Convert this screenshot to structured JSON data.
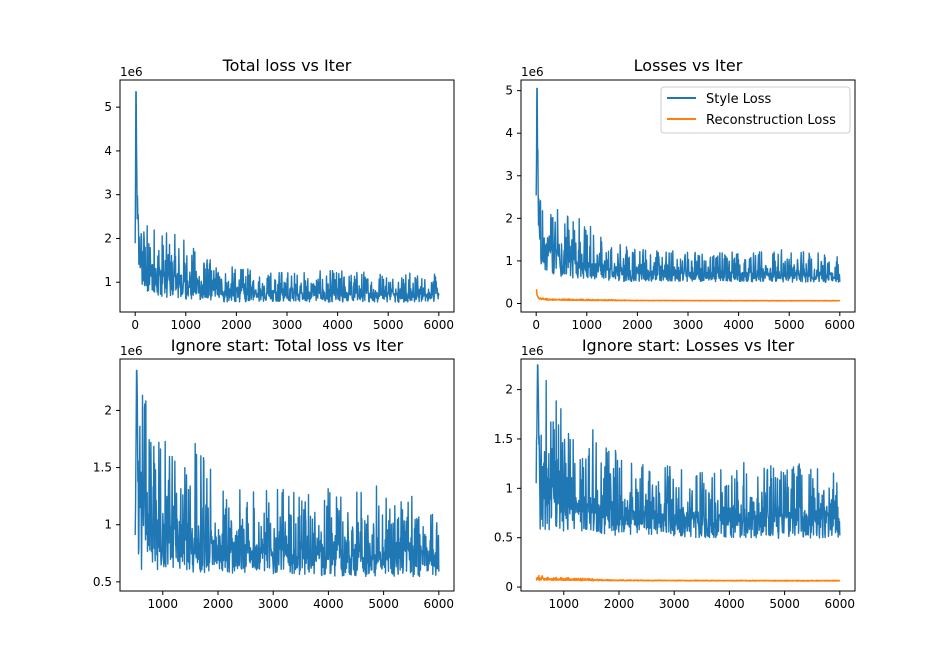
{
  "chart_data": [
    {
      "type": "line",
      "title": "Total loss vs Iter",
      "xlabel": "",
      "ylabel": "",
      "y_offset_label": "1e6",
      "xlim": [
        -300,
        6300
      ],
      "ylim": [
        0.32,
        5.62
      ],
      "xticks": [
        0,
        1000,
        2000,
        3000,
        4000,
        5000,
        6000
      ],
      "yticks": [
        1,
        2,
        3,
        4,
        5
      ],
      "grid": false,
      "legend": "none",
      "series": [
        {
          "color": "#1f77b4",
          "x": [
            0,
            15,
            40,
            80,
            150,
            250,
            400,
            600,
            800,
            1000,
            1200,
            1400,
            1600,
            2000,
            2500,
            3000,
            3500,
            4000,
            4500,
            5000,
            5500,
            6000
          ],
          "y": [
            1.8,
            5.35,
            2.6,
            1.7,
            1.5,
            1.3,
            1.2,
            1.15,
            1.1,
            1.0,
            0.95,
            0.9,
            0.85,
            0.8,
            0.78,
            0.76,
            0.75,
            0.75,
            0.75,
            0.74,
            0.74,
            0.73
          ],
          "noise_low": [
            0.2,
            0.0,
            0.6,
            0.7,
            0.6,
            0.55,
            0.5,
            0.5,
            0.45,
            0.4,
            0.35,
            0.3,
            0.3,
            0.25,
            0.22,
            0.2,
            0.2,
            0.2,
            0.2,
            0.2,
            0.2,
            0.2
          ],
          "noise_high": [
            1.2,
            0.0,
            0.9,
            1.0,
            1.0,
            1.1,
            1.3,
            1.0,
            1.0,
            1.1,
            0.8,
            0.7,
            0.6,
            0.55,
            0.5,
            0.55,
            0.5,
            0.55,
            0.55,
            0.6,
            0.5,
            0.45
          ]
        }
      ]
    },
    {
      "type": "line",
      "title": "Losses vs Iter",
      "xlabel": "",
      "ylabel": "",
      "y_offset_label": "1e6",
      "xlim": [
        -300,
        6300
      ],
      "ylim": [
        -0.2,
        5.25
      ],
      "xticks": [
        0,
        1000,
        2000,
        3000,
        4000,
        5000,
        6000
      ],
      "yticks": [
        0,
        1,
        2,
        3,
        4,
        5
      ],
      "grid": false,
      "legend": "top-right",
      "series": [
        {
          "name": "Style Loss",
          "color": "#1f77b4",
          "x": [
            0,
            15,
            40,
            80,
            150,
            250,
            400,
            600,
            800,
            1000,
            1200,
            1400,
            1600,
            2000,
            2500,
            3000,
            3500,
            4000,
            4500,
            5000,
            5500,
            6000
          ],
          "y": [
            1.6,
            5.05,
            2.5,
            1.6,
            1.4,
            1.25,
            1.15,
            1.1,
            1.05,
            0.95,
            0.9,
            0.85,
            0.8,
            0.76,
            0.74,
            0.72,
            0.71,
            0.71,
            0.71,
            0.7,
            0.7,
            0.69
          ],
          "noise_low": [
            0.2,
            0.0,
            0.6,
            0.7,
            0.6,
            0.55,
            0.5,
            0.5,
            0.45,
            0.4,
            0.35,
            0.3,
            0.3,
            0.25,
            0.22,
            0.2,
            0.2,
            0.2,
            0.2,
            0.2,
            0.2,
            0.2
          ],
          "noise_high": [
            1.2,
            0.0,
            0.9,
            1.0,
            1.0,
            1.1,
            1.2,
            1.0,
            1.0,
            1.0,
            0.8,
            0.7,
            0.6,
            0.55,
            0.5,
            0.55,
            0.5,
            0.55,
            0.55,
            0.6,
            0.5,
            0.45
          ]
        },
        {
          "name": "Reconstruction Loss",
          "color": "#ff7f0e",
          "x": [
            0,
            20,
            60,
            150,
            300,
            600,
            1000,
            1500,
            2000,
            3000,
            4000,
            5000,
            6000
          ],
          "y": [
            0.32,
            0.2,
            0.12,
            0.1,
            0.09,
            0.085,
            0.08,
            0.075,
            0.07,
            0.068,
            0.066,
            0.065,
            0.065
          ],
          "noise_low": [
            0.02,
            0.02,
            0.02,
            0.015,
            0.012,
            0.01,
            0.01,
            0.008,
            0.004,
            0.003,
            0.003,
            0.003,
            0.003
          ],
          "noise_high": [
            0.04,
            0.04,
            0.03,
            0.025,
            0.02,
            0.02,
            0.02,
            0.015,
            0.006,
            0.004,
            0.004,
            0.004,
            0.004
          ]
        }
      ]
    },
    {
      "type": "line",
      "title": "Ignore start: Total loss vs Iter",
      "xlabel": "",
      "ylabel": "",
      "y_offset_label": "1e6",
      "xlim": [
        225,
        6275
      ],
      "ylim": [
        0.42,
        2.45
      ],
      "xticks": [
        1000,
        2000,
        3000,
        4000,
        5000,
        6000
      ],
      "yticks": [
        0.5,
        1.0,
        1.5,
        2.0
      ],
      "grid": false,
      "legend": "none",
      "series": [
        {
          "color": "#1f77b4",
          "x": [
            500,
            530,
            560,
            600,
            700,
            800,
            1000,
            1200,
            1400,
            1600,
            2000,
            2500,
            3000,
            3500,
            4000,
            4500,
            5000,
            5500,
            6000
          ],
          "y": [
            1.1,
            2.35,
            1.3,
            1.15,
            1.1,
            1.05,
            1.0,
            0.95,
            0.9,
            0.87,
            0.82,
            0.8,
            0.78,
            0.77,
            0.77,
            0.77,
            0.76,
            0.76,
            0.75
          ],
          "noise_low": [
            0.4,
            0.0,
            0.6,
            0.55,
            0.5,
            0.45,
            0.4,
            0.35,
            0.3,
            0.3,
            0.25,
            0.22,
            0.22,
            0.22,
            0.22,
            0.22,
            0.22,
            0.22,
            0.2
          ],
          "noise_high": [
            0.4,
            0.0,
            0.9,
            1.0,
            1.05,
            1.1,
            0.8,
            0.7,
            0.6,
            0.9,
            0.55,
            0.5,
            0.55,
            0.5,
            0.55,
            0.55,
            0.6,
            0.5,
            0.45
          ]
        }
      ]
    },
    {
      "type": "line",
      "title": "Ignore start: Losses vs Iter",
      "xlabel": "",
      "ylabel": "",
      "y_offset_label": "1e6",
      "xlim": [
        225,
        6275
      ],
      "ylim": [
        -0.04,
        2.31
      ],
      "xticks": [
        1000,
        2000,
        3000,
        4000,
        5000,
        6000
      ],
      "yticks": [
        0.0,
        0.5,
        1.0,
        1.5,
        2.0
      ],
      "grid": false,
      "legend": "none",
      "series": [
        {
          "name": "Style Loss",
          "color": "#1f77b4",
          "x": [
            500,
            530,
            560,
            600,
            700,
            800,
            1000,
            1200,
            1400,
            1600,
            2000,
            2500,
            3000,
            3500,
            4000,
            4500,
            5000,
            5500,
            6000
          ],
          "y": [
            1.05,
            2.25,
            1.2,
            1.1,
            1.05,
            1.0,
            0.95,
            0.9,
            0.85,
            0.82,
            0.77,
            0.75,
            0.73,
            0.72,
            0.72,
            0.72,
            0.71,
            0.71,
            0.7
          ],
          "noise_low": [
            0.4,
            0.0,
            0.6,
            0.55,
            0.5,
            0.45,
            0.4,
            0.35,
            0.3,
            0.3,
            0.25,
            0.22,
            0.22,
            0.22,
            0.22,
            0.22,
            0.22,
            0.22,
            0.2
          ],
          "noise_high": [
            0.4,
            0.0,
            0.9,
            1.0,
            1.05,
            1.1,
            0.8,
            0.7,
            0.6,
            0.9,
            0.55,
            0.5,
            0.55,
            0.5,
            0.55,
            0.55,
            0.6,
            0.5,
            0.45
          ]
        },
        {
          "name": "Reconstruction Loss",
          "color": "#ff7f0e",
          "x": [
            500,
            600,
            800,
            1000,
            1300,
            1600,
            2000,
            3000,
            4000,
            5000,
            6000
          ],
          "y": [
            0.08,
            0.085,
            0.08,
            0.078,
            0.075,
            0.07,
            0.068,
            0.066,
            0.065,
            0.064,
            0.064
          ],
          "noise_low": [
            0.02,
            0.015,
            0.012,
            0.01,
            0.01,
            0.005,
            0.004,
            0.003,
            0.003,
            0.003,
            0.003
          ],
          "noise_high": [
            0.04,
            0.03,
            0.02,
            0.02,
            0.02,
            0.008,
            0.005,
            0.004,
            0.004,
            0.004,
            0.004
          ]
        }
      ]
    }
  ],
  "legend": {
    "items": [
      {
        "label": "Style Loss",
        "color": "#1f77b4"
      },
      {
        "label": "Reconstruction Loss",
        "color": "#ff7f0e"
      }
    ]
  }
}
